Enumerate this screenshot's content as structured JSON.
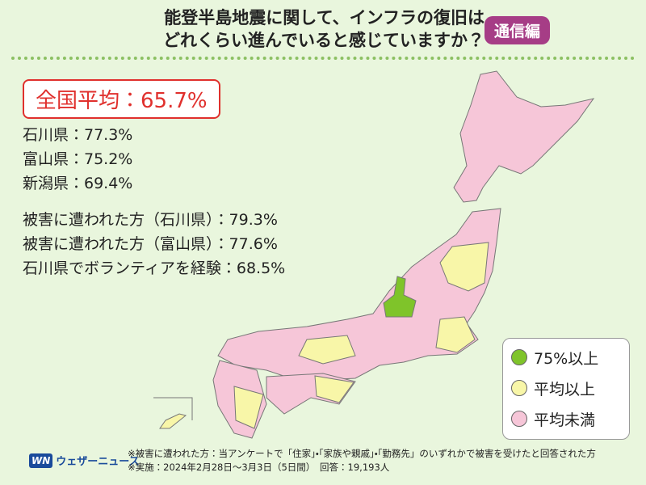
{
  "header": {
    "title_lines": [
      "能登半島地震に関して、インフラの復旧は",
      "どれくらい進んでいると感じていますか？"
    ],
    "badge": "通信編"
  },
  "national_average": "全国平均：65.7%",
  "prefectures": [
    "石川県：77.3%",
    "富山県：75.2%",
    "新潟県：69.4%"
  ],
  "groups": [
    "被害に遭われた方（石川県）：79.3%",
    "被害に遭われた方（富山県）：77.6%",
    "石川県でボランティアを経験：68.5%"
  ],
  "legend": [
    "75%以上",
    "平均以上",
    "平均未満"
  ],
  "logo": {
    "mark": "WN",
    "name": "ウェザーニュース"
  },
  "footnotes": [
    "※被害に遭われた方：当アンケートで「住家」・「家族や親戚」・「勤務先」のいずれかで被害を受けたと回答された方",
    "※実施：2024年2月28日～3月3日（5日間）　回答：19,193人"
  ]
}
